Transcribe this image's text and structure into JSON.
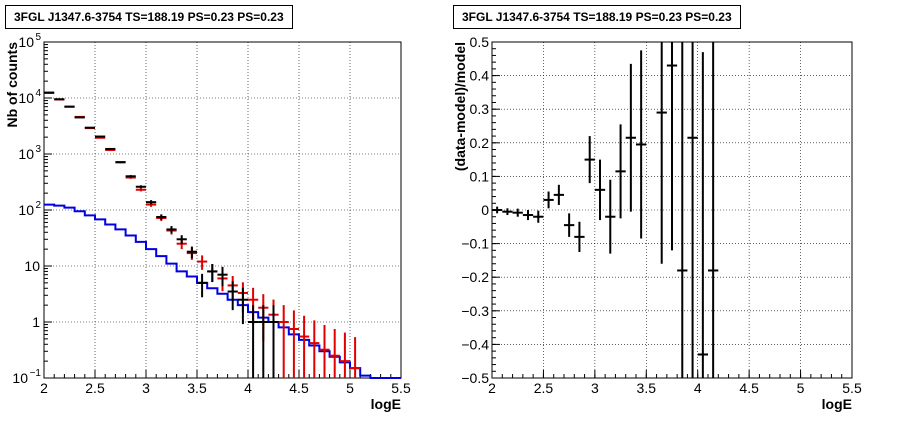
{
  "chart_data": [
    {
      "type": "step",
      "title": "3FGL J1347.6-3754 TS=188.19 PS=0.23 PS=0.23",
      "xlabel": "logE",
      "ylabel": "Nb of counts",
      "xlim": [
        2,
        5.5
      ],
      "ylim": [
        0.1,
        100000
      ],
      "ylog": true,
      "grid": true,
      "x_ticks": [
        "2",
        "2.5",
        "3",
        "3.5",
        "4",
        "4.5",
        "5",
        "5.5"
      ],
      "y_ticks": [
        "10^-1",
        "1",
        "10",
        "10^2",
        "10^3",
        "10^4",
        "10^5"
      ],
      "colors": {
        "data": "#000000",
        "model": "#e00000",
        "background": "#0000e0"
      },
      "series": [
        {
          "key": "data",
          "x": [
            2.05,
            2.15,
            2.25,
            2.35,
            2.45,
            2.55,
            2.65,
            2.75,
            2.85,
            2.95,
            3.05,
            3.15,
            3.25,
            3.35,
            3.45,
            3.55,
            3.65,
            3.75,
            3.85,
            3.95,
            4.05,
            4.15,
            4.25
          ],
          "values": [
            12500,
            9500,
            7000,
            4500,
            2950,
            2050,
            1230,
            710,
            400,
            260,
            138,
            75,
            45,
            30,
            18,
            5,
            8,
            7,
            3.5,
            2.5,
            1,
            1,
            1
          ]
        },
        {
          "key": "model",
          "x": [
            2.05,
            2.15,
            2.25,
            2.35,
            2.45,
            2.55,
            2.65,
            2.75,
            2.85,
            2.95,
            3.05,
            3.15,
            3.25,
            3.35,
            3.45,
            3.55,
            3.65,
            3.75,
            3.85,
            3.95,
            4.05,
            4.15,
            4.25,
            4.35,
            4.45,
            4.55,
            4.65,
            4.75,
            4.85,
            4.95,
            5.05
          ],
          "values": [
            12300,
            9400,
            7000,
            4600,
            2900,
            1950,
            1180,
            720,
            380,
            230,
            125,
            72,
            43,
            25,
            17,
            12,
            8,
            6,
            4.5,
            3.3,
            2.5,
            1.8,
            1.35,
            1.0,
            0.75,
            0.55,
            0.42,
            0.32,
            0.25,
            0.2,
            0.15
          ]
        },
        {
          "key": "background",
          "edges": [
            2.0,
            2.1,
            2.2,
            2.3,
            2.4,
            2.5,
            2.6,
            2.7,
            2.8,
            2.9,
            3.0,
            3.1,
            3.2,
            3.3,
            3.4,
            3.5,
            3.6,
            3.7,
            3.8,
            3.9,
            4.0,
            4.1,
            4.2,
            4.3,
            4.4,
            4.5,
            4.6,
            4.7,
            4.8,
            4.9,
            5.0,
            5.1,
            5.2,
            5.3,
            5.4,
            5.5
          ],
          "values": [
            125,
            120,
            110,
            95,
            80,
            68,
            55,
            45,
            35,
            27,
            20,
            15,
            11,
            8,
            6.5,
            5,
            4,
            3.2,
            2.5,
            2,
            1.5,
            1.2,
            1.0,
            0.8,
            0.6,
            0.48,
            0.38,
            0.3,
            0.24,
            0.19,
            0.15,
            0.11,
            0.1,
            0.1,
            0.1
          ]
        }
      ]
    },
    {
      "type": "errorbar",
      "title": "3FGL J1347.6-3754 TS=188.19 PS=0.23 PS=0.23",
      "xlabel": "logE",
      "ylabel": "(data-model)/model",
      "xlim": [
        2,
        5.5
      ],
      "ylim": [
        -0.5,
        0.5
      ],
      "grid": true,
      "x_ticks": [
        "2",
        "2.5",
        "3",
        "3.5",
        "4",
        "4.5",
        "5",
        "5.5"
      ],
      "y_ticks": [
        "−0.5",
        "−0.4",
        "−0.3",
        "−0.2",
        "−0.1",
        "0",
        "0.1",
        "0.2",
        "0.3",
        "0.4",
        "0.5"
      ],
      "series": [
        {
          "x": [
            2.05,
            2.15,
            2.25,
            2.35,
            2.45,
            2.55,
            2.65,
            2.75,
            2.85,
            2.95,
            3.05,
            3.15,
            3.25,
            3.35,
            3.45,
            3.65,
            3.75,
            3.85,
            3.95,
            4.05,
            4.15
          ],
          "y": [
            0.0,
            -0.005,
            -0.008,
            -0.015,
            -0.02,
            0.03,
            0.045,
            -0.045,
            -0.08,
            0.15,
            0.06,
            -0.02,
            0.115,
            0.215,
            0.195,
            0.29,
            0.43,
            -0.18,
            0.215,
            -0.43,
            -0.18
          ],
          "err": [
            0.01,
            0.01,
            0.012,
            0.015,
            0.018,
            0.025,
            0.03,
            0.035,
            0.045,
            0.07,
            0.09,
            0.11,
            0.14,
            0.22,
            0.28,
            0.45,
            0.55,
            0.7,
            0.8,
            0.9,
            1.0
          ]
        }
      ]
    }
  ]
}
